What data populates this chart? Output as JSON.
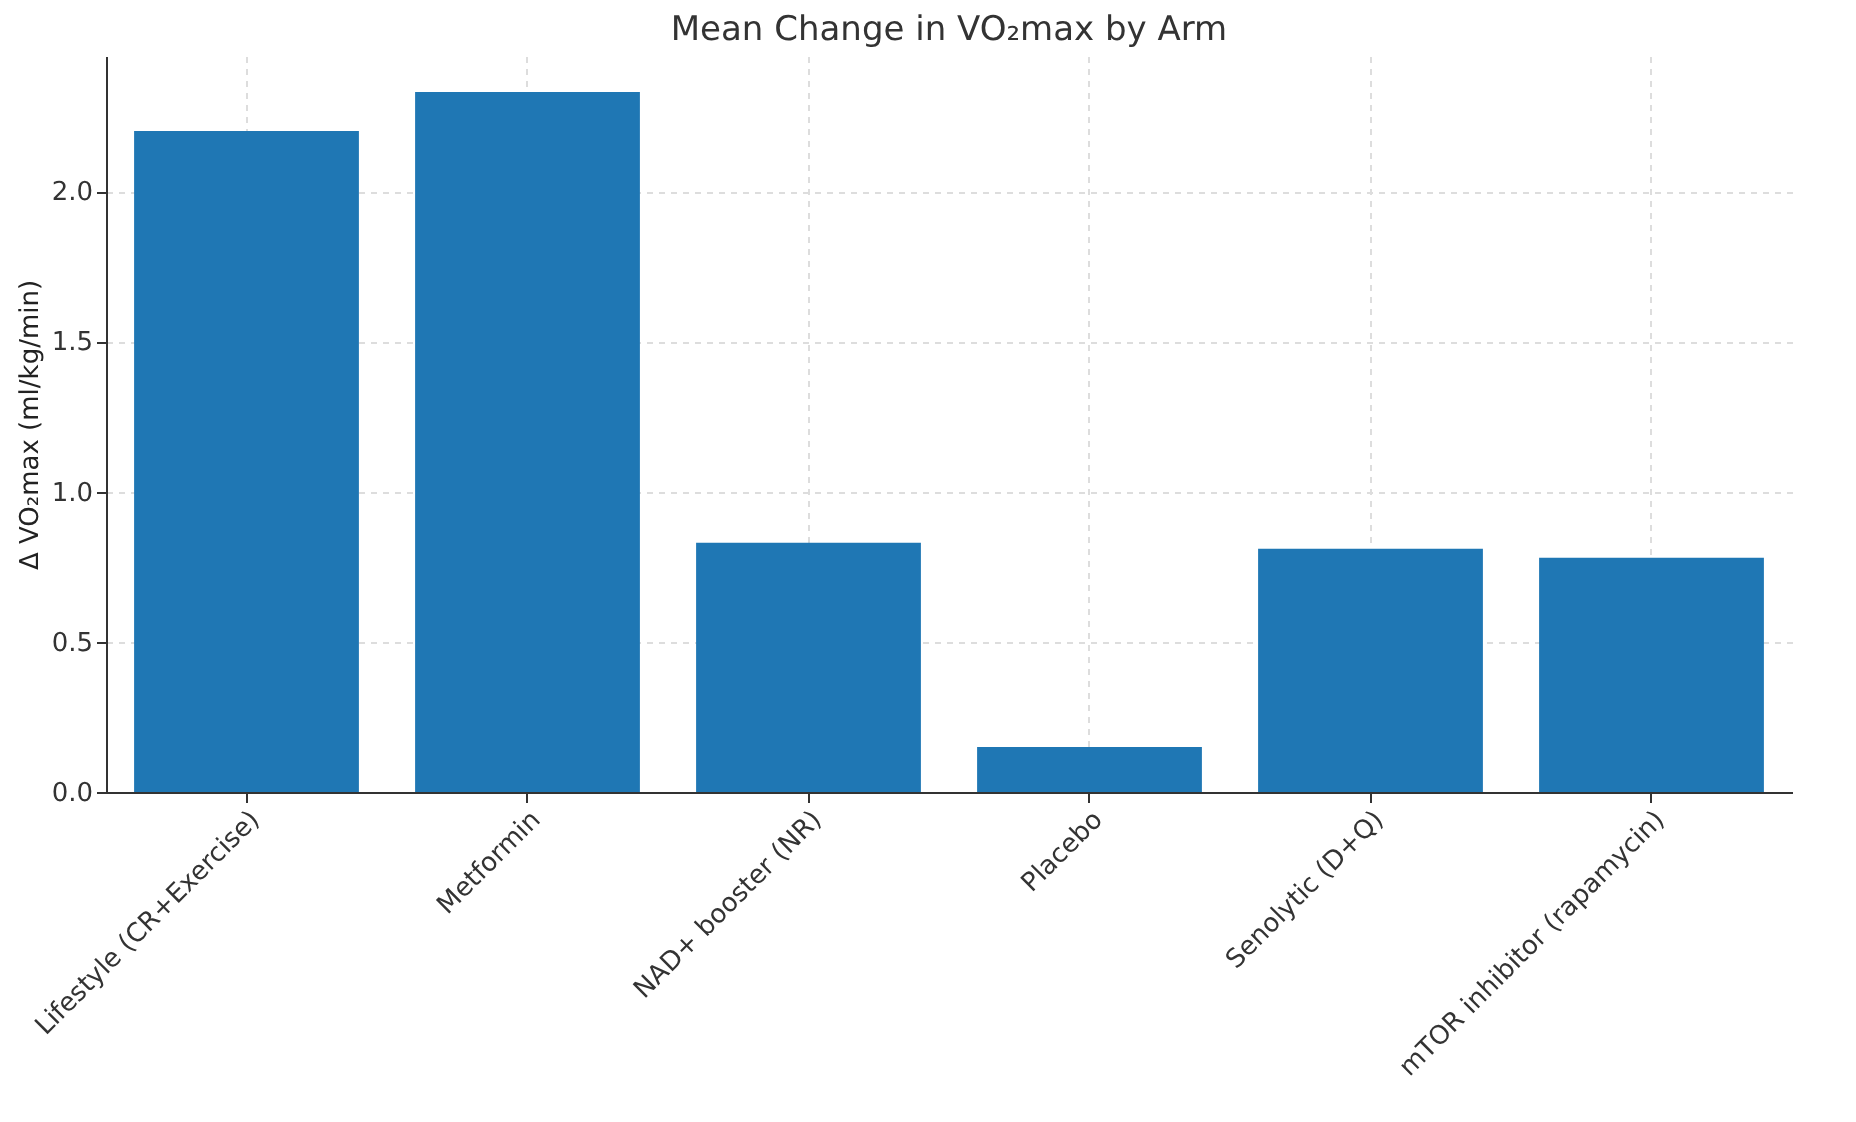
{
  "chart_data": {
    "type": "bar",
    "title": "Mean Change in VO₂max by Arm",
    "ylabel": "Δ VO₂max (ml/kg/min)",
    "categories": [
      "Lifestyle (CR+Exercise)",
      "Metformin",
      "NAD+ booster (NR)",
      "Placebo",
      "Senolytic (D+Q)",
      "mTOR inhibitor (rapamycin)"
    ],
    "values": [
      2.2,
      2.33,
      0.83,
      0.15,
      0.81,
      0.78
    ],
    "color": "#1f77b4",
    "ylim": [
      0,
      2.45
    ],
    "yticks": [
      {
        "value": 0,
        "label": "0.0"
      },
      {
        "value": 0.5,
        "label": "0.5"
      },
      {
        "value": 1,
        "label": "1.0"
      },
      {
        "value": 1.5,
        "label": "1.5"
      },
      {
        "value": 2,
        "label": "2.0"
      }
    ],
    "grid": true
  }
}
